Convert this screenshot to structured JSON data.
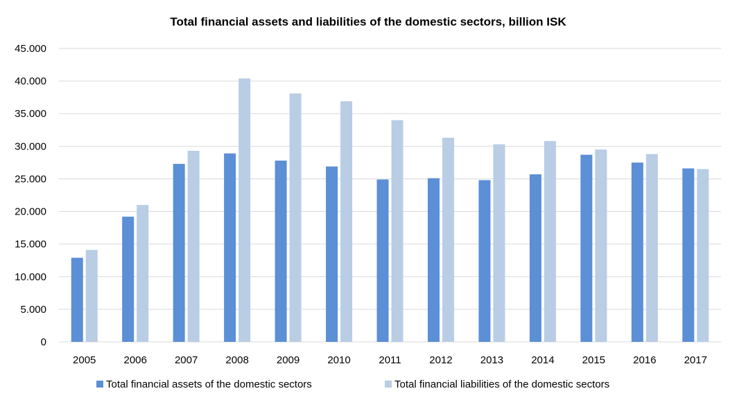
{
  "chart_data": {
    "type": "bar",
    "title": "Total financial assets and liabilities of the domestic sectors, billion ISK",
    "xlabel": "",
    "ylabel": "",
    "categories": [
      "2005",
      "2006",
      "2007",
      "2008",
      "2009",
      "2010",
      "2011",
      "2012",
      "2013",
      "2014",
      "2015",
      "2016",
      "2017"
    ],
    "series": [
      {
        "name": "Total financial assets of the domestic sectors",
        "color": "#5B8FD6",
        "values": [
          12900,
          19200,
          27300,
          28900,
          27800,
          26900,
          24900,
          25100,
          24800,
          25700,
          28700,
          27500,
          26600
        ]
      },
      {
        "name": "Total financial liabilities of the domestic sectors",
        "color": "#B9CDE5",
        "values": [
          14100,
          21000,
          29300,
          40400,
          38100,
          36900,
          34000,
          31300,
          30300,
          30800,
          29500,
          28800,
          26500
        ]
      }
    ],
    "ylim": [
      0,
      45000
    ],
    "yticks": [
      0,
      5000,
      10000,
      15000,
      20000,
      25000,
      30000,
      35000,
      40000,
      45000
    ],
    "ytick_labels": [
      "0",
      "5.000",
      "10.000",
      "15.000",
      "20.000",
      "25.000",
      "30.000",
      "35.000",
      "40.000",
      "45.000"
    ],
    "grid": true,
    "legend": "bottom",
    "gridline_color": "#D9D9D9"
  }
}
